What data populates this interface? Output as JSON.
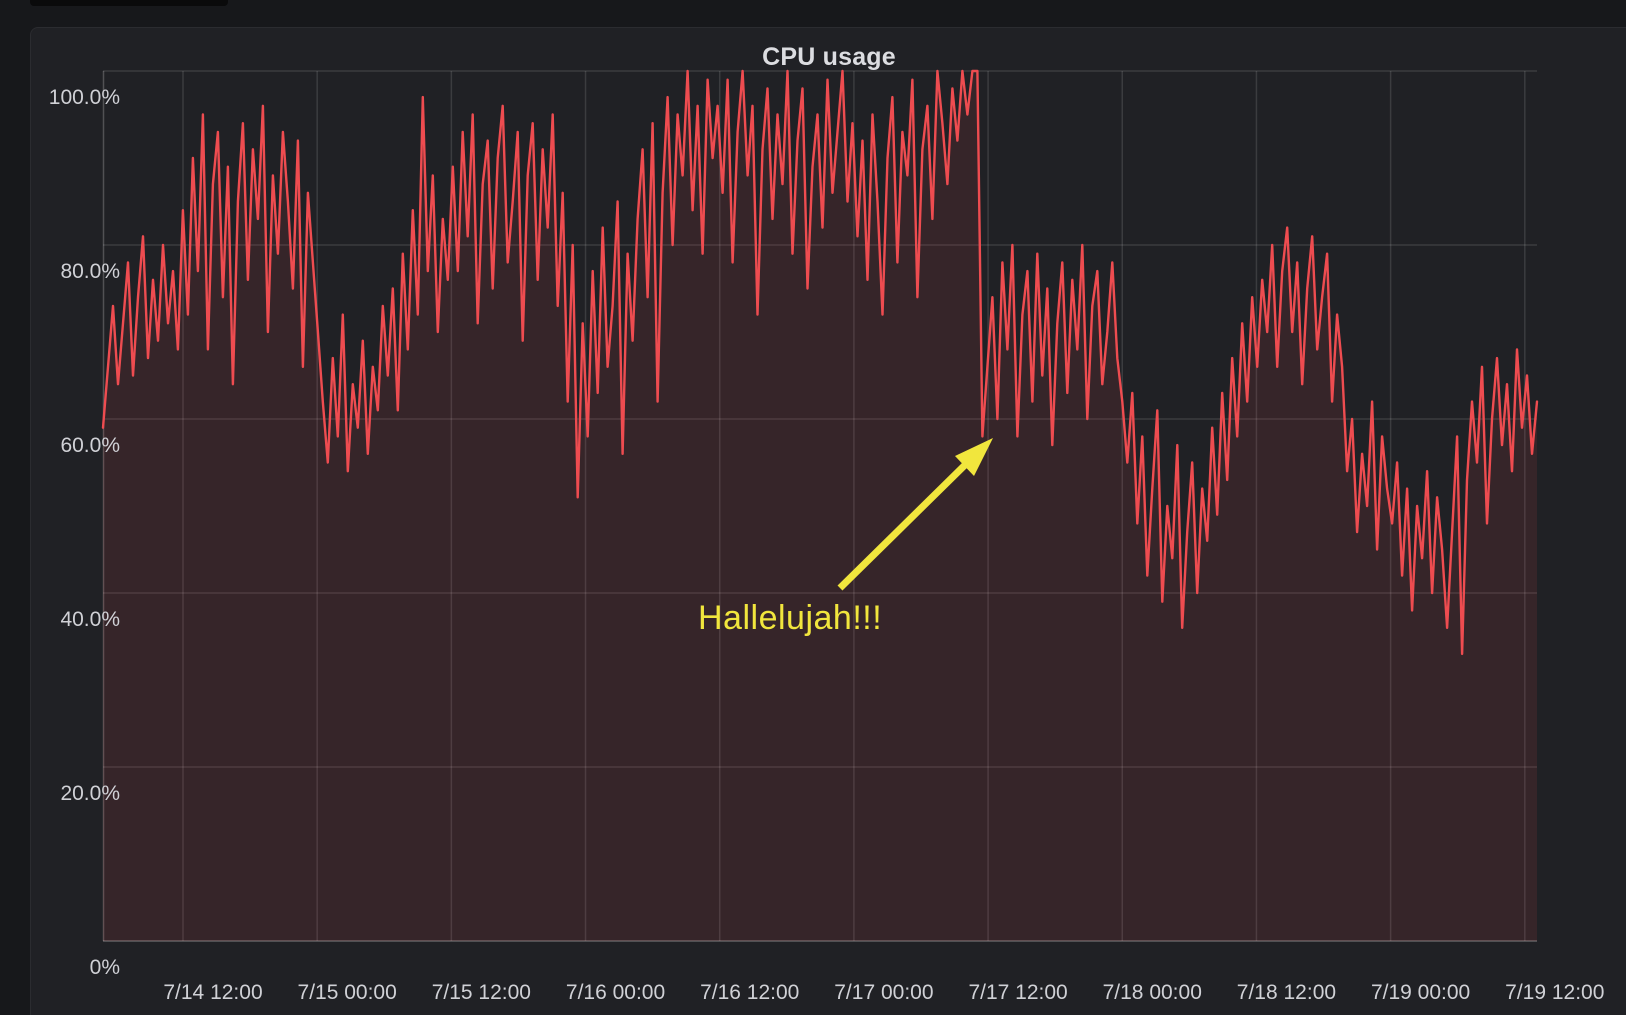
{
  "window": {
    "background": "#17181b"
  },
  "panel": {
    "title": "CPU usage",
    "background": "#202125",
    "title_color": "#dcdde1"
  },
  "axis": {
    "tick_label_color": "#d0d1d6",
    "grid_color": "rgba(255,255,255,0.12)",
    "axis_line_color": "rgba(255,255,255,0.22)"
  },
  "annotation": {
    "label": "Hallelujah!!!",
    "color": "#f1e63d"
  },
  "chart_data": {
    "type": "line",
    "title": "CPU usage",
    "series_name": "CPU usage",
    "series_color": "#ee4c50",
    "fill_color": "rgba(239,75,82,0.11)",
    "ylim": [
      0,
      100
    ],
    "y_unit": "percent",
    "grid": true,
    "legend": false,
    "y_tick_labels": [
      "100.0%",
      "80.0%",
      "60.0%",
      "40.0%",
      "20.0%",
      "0%"
    ],
    "x_tick_labels": [
      "7/14 12:00",
      "7/15 00:00",
      "7/15 12:00",
      "7/16 00:00",
      "7/16 12:00",
      "7/17 00:00",
      "7/17 12:00",
      "7/18 00:00",
      "7/18 12:00",
      "7/19 00:00",
      "7/19 12:00"
    ],
    "values": [
      59,
      66,
      73,
      64,
      71,
      78,
      65,
      74,
      81,
      67,
      76,
      69,
      80,
      71,
      77,
      68,
      84,
      72,
      90,
      77,
      95,
      68,
      87,
      93,
      74,
      89,
      64,
      85,
      94,
      76,
      91,
      83,
      96,
      70,
      88,
      79,
      93,
      85,
      75,
      92,
      66,
      86,
      78,
      70,
      62,
      55,
      67,
      58,
      72,
      54,
      64,
      59,
      69,
      56,
      66,
      61,
      73,
      65,
      75,
      61,
      79,
      68,
      84,
      72,
      97,
      77,
      88,
      70,
      83,
      76,
      89,
      77,
      93,
      81,
      95,
      71,
      87,
      92,
      75,
      90,
      96,
      78,
      85,
      93,
      69,
      88,
      94,
      76,
      91,
      82,
      95,
      73,
      86,
      62,
      80,
      51,
      71,
      58,
      77,
      63,
      82,
      66,
      73,
      85,
      56,
      79,
      69,
      83,
      91,
      74,
      94,
      62,
      86,
      97,
      80,
      95,
      88,
      100,
      84,
      96,
      79,
      99,
      90,
      96,
      86,
      99,
      78,
      93,
      100,
      88,
      96,
      72,
      91,
      98,
      83,
      95,
      87,
      100,
      79,
      92,
      98,
      75,
      89,
      95,
      82,
      99,
      86,
      93,
      100,
      85,
      94,
      81,
      92,
      76,
      95,
      85,
      72,
      90,
      97,
      78,
      93,
      88,
      99,
      74,
      91,
      96,
      83,
      100,
      94,
      87,
      98,
      92,
      100,
      95,
      100,
      100,
      58,
      66,
      74,
      60,
      78,
      68,
      80,
      58,
      72,
      77,
      62,
      79,
      65,
      75,
      57,
      71,
      78,
      63,
      76,
      68,
      80,
      60,
      73,
      77,
      64,
      70,
      78,
      67,
      62,
      55,
      63,
      48,
      58,
      42,
      52,
      61,
      39,
      50,
      44,
      57,
      36,
      47,
      55,
      40,
      52,
      46,
      59,
      49,
      63,
      53,
      67,
      58,
      71,
      62,
      74,
      66,
      76,
      70,
      80,
      66,
      77,
      82,
      70,
      78,
      64,
      75,
      81,
      68,
      74,
      79,
      62,
      72,
      66,
      54,
      60,
      47,
      56,
      50,
      62,
      45,
      58,
      52,
      48,
      55,
      42,
      52,
      38,
      50,
      44,
      54,
      40,
      51,
      45,
      36,
      47,
      58,
      33,
      53,
      62,
      55,
      66,
      48,
      60,
      67,
      57,
      64,
      54,
      68,
      59,
      65,
      56,
      62
    ]
  }
}
